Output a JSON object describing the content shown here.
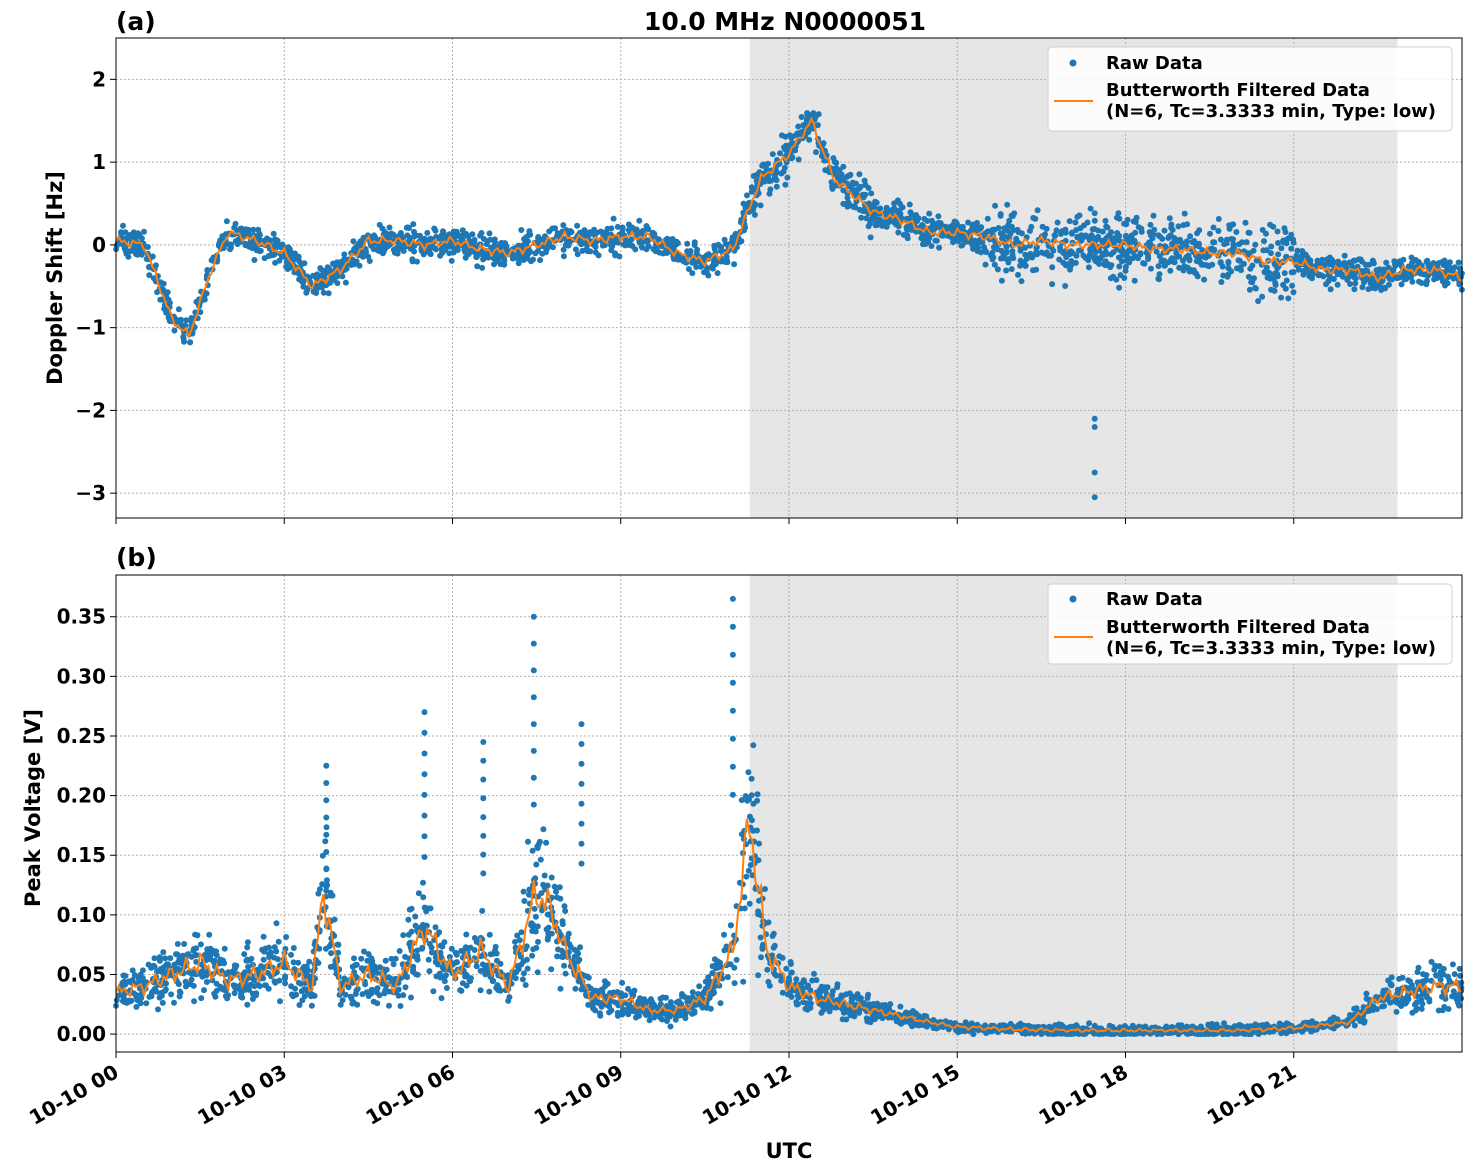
{
  "chart_data": [
    {
      "type": "scatter+line",
      "panel_label": "(a)",
      "title": "10.0 MHz N0000051",
      "ylabel": "Doppler Shift [Hz]",
      "ylim": [
        -3.3,
        2.5
      ],
      "yticks": [
        2,
        1,
        0,
        -1,
        -2,
        -3
      ],
      "ytick_labels": [
        "2",
        "1",
        "0",
        "−1",
        "−2",
        "−3"
      ],
      "grid": true,
      "legend_position": "top-right",
      "shaded_interval_hours": [
        11.3,
        22.85
      ],
      "series": [
        {
          "name": "Raw Data",
          "kind": "scatter",
          "color": "#1f77b4",
          "x_hours": [
            0,
            0.5,
            1.0,
            1.3,
            1.7,
            2.0,
            2.5,
            3.0,
            3.5,
            4.0,
            4.5,
            5.0,
            5.5,
            6.0,
            6.5,
            7.0,
            7.5,
            8.0,
            8.5,
            9.0,
            9.5,
            10.0,
            10.5,
            11.0,
            11.5,
            12.0,
            12.4,
            12.8,
            13.5,
            14.0,
            14.5,
            15.0,
            15.5,
            16.0,
            16.5,
            17.0,
            17.5,
            18.0,
            18.5,
            19.0,
            19.5,
            20.0,
            20.5,
            21.0,
            21.5,
            22.0,
            22.5,
            23.0,
            23.5,
            24.0
          ],
          "y": [
            0.05,
            0.0,
            -0.9,
            -1.1,
            -0.3,
            0.15,
            0.05,
            -0.1,
            -0.5,
            -0.3,
            0.05,
            0.05,
            0.0,
            0.05,
            -0.05,
            -0.1,
            0.0,
            0.1,
            0.05,
            0.1,
            0.1,
            -0.1,
            -0.2,
            -0.05,
            0.8,
            1.1,
            1.5,
            0.8,
            0.4,
            0.3,
            0.15,
            0.15,
            0.1,
            0.0,
            0.05,
            0.0,
            0.0,
            0.0,
            -0.05,
            -0.05,
            -0.1,
            -0.1,
            -0.2,
            -0.2,
            -0.3,
            -0.3,
            -0.4,
            -0.3,
            -0.3,
            -0.4
          ],
          "outliers": [
            [
              17.45,
              -2.1
            ],
            [
              17.45,
              -2.2
            ],
            [
              17.45,
              -2.75
            ],
            [
              17.45,
              -3.05
            ]
          ]
        },
        {
          "name": "Butterworth Filtered Data\n(N=6, Tc=3.3333 min, Type: low)",
          "kind": "line",
          "color": "#ff7f0e",
          "x_hours": [
            0,
            0.5,
            1.0,
            1.3,
            1.7,
            2.0,
            2.5,
            3.0,
            3.5,
            4.0,
            4.5,
            5.0,
            5.5,
            6.0,
            6.5,
            7.0,
            7.5,
            8.0,
            8.5,
            9.0,
            9.5,
            10.0,
            10.5,
            11.0,
            11.5,
            12.0,
            12.4,
            12.8,
            13.5,
            14.0,
            14.5,
            15.0,
            15.5,
            16.0,
            16.5,
            17.0,
            17.5,
            18.0,
            18.5,
            19.0,
            19.5,
            20.0,
            20.5,
            21.0,
            21.5,
            22.0,
            22.5,
            23.0,
            23.5,
            24.0
          ],
          "y": [
            0.05,
            0.0,
            -0.9,
            -1.1,
            -0.3,
            0.15,
            0.05,
            -0.1,
            -0.5,
            -0.3,
            0.05,
            0.05,
            0.0,
            0.05,
            -0.05,
            -0.1,
            0.0,
            0.1,
            0.05,
            0.1,
            0.1,
            -0.1,
            -0.2,
            -0.05,
            0.8,
            1.1,
            1.5,
            0.8,
            0.4,
            0.3,
            0.15,
            0.15,
            0.1,
            0.0,
            0.05,
            0.0,
            0.0,
            0.0,
            -0.05,
            -0.05,
            -0.1,
            -0.1,
            -0.2,
            -0.2,
            -0.3,
            -0.3,
            -0.4,
            -0.3,
            -0.3,
            -0.4
          ]
        }
      ]
    },
    {
      "type": "scatter+line",
      "panel_label": "(b)",
      "ylabel": "Peak Voltage [V]",
      "xlabel": "UTC",
      "ylim": [
        -0.015,
        0.385
      ],
      "yticks": [
        0.35,
        0.3,
        0.25,
        0.2,
        0.15,
        0.1,
        0.05,
        0.0
      ],
      "ytick_labels": [
        "0.35",
        "0.30",
        "0.25",
        "0.20",
        "0.15",
        "0.10",
        "0.05",
        "0.00"
      ],
      "x_range_hours": [
        0,
        24
      ],
      "xticks_hours": [
        0,
        3,
        6,
        9,
        12,
        15,
        18,
        21
      ],
      "xtick_labels": [
        "10-10 00",
        "10-10 03",
        "10-10 06",
        "10-10 09",
        "10-10 12",
        "10-10 15",
        "10-10 18",
        "10-10 21"
      ],
      "grid": true,
      "legend_position": "top-right",
      "shaded_interval_hours": [
        11.3,
        22.85
      ],
      "series": [
        {
          "name": "Raw Data",
          "kind": "scatter",
          "color": "#1f77b4",
          "x_hours": [
            0,
            0.5,
            1.0,
            1.5,
            2.0,
            2.5,
            3.0,
            3.5,
            3.7,
            4.0,
            4.5,
            5.0,
            5.5,
            6.0,
            6.5,
            7.0,
            7.5,
            7.8,
            8.0,
            8.5,
            9.0,
            9.5,
            10.0,
            10.5,
            11.0,
            11.3,
            11.6,
            12.0,
            12.5,
            13.0,
            13.5,
            14.0,
            14.5,
            15.0,
            16.0,
            17.0,
            18.0,
            19.0,
            20.0,
            21.0,
            22.0,
            22.5,
            23.0,
            23.5,
            24.0
          ],
          "y": [
            0.035,
            0.04,
            0.05,
            0.06,
            0.045,
            0.05,
            0.06,
            0.04,
            0.12,
            0.04,
            0.05,
            0.04,
            0.09,
            0.05,
            0.07,
            0.04,
            0.12,
            0.1,
            0.07,
            0.03,
            0.03,
            0.02,
            0.02,
            0.03,
            0.07,
            0.18,
            0.07,
            0.04,
            0.03,
            0.025,
            0.02,
            0.015,
            0.01,
            0.006,
            0.004,
            0.003,
            0.003,
            0.003,
            0.003,
            0.005,
            0.01,
            0.03,
            0.035,
            0.04,
            0.04
          ],
          "peaks": [
            [
              7.45,
              0.35
            ],
            [
              11.0,
              0.365
            ],
            [
              5.5,
              0.27
            ],
            [
              3.75,
              0.225
            ],
            [
              6.55,
              0.245
            ],
            [
              8.3,
              0.26
            ]
          ]
        },
        {
          "name": "Butterworth Filtered Data\n(N=6, Tc=3.3333 min, Type: low)",
          "kind": "line",
          "color": "#ff7f0e",
          "x_hours": [
            0,
            0.5,
            1.0,
            1.5,
            2.0,
            2.5,
            3.0,
            3.5,
            3.7,
            4.0,
            4.5,
            5.0,
            5.5,
            6.0,
            6.5,
            7.0,
            7.5,
            7.8,
            8.0,
            8.5,
            9.0,
            9.5,
            10.0,
            10.5,
            11.0,
            11.3,
            11.6,
            12.0,
            12.5,
            13.0,
            13.5,
            14.0,
            14.5,
            15.0,
            16.0,
            17.0,
            18.0,
            19.0,
            20.0,
            21.0,
            22.0,
            22.5,
            23.0,
            23.5,
            24.0
          ],
          "y": [
            0.035,
            0.04,
            0.05,
            0.06,
            0.045,
            0.05,
            0.06,
            0.04,
            0.12,
            0.04,
            0.05,
            0.04,
            0.09,
            0.05,
            0.07,
            0.04,
            0.12,
            0.1,
            0.07,
            0.03,
            0.03,
            0.02,
            0.02,
            0.03,
            0.07,
            0.18,
            0.07,
            0.04,
            0.03,
            0.025,
            0.02,
            0.015,
            0.01,
            0.006,
            0.004,
            0.003,
            0.003,
            0.003,
            0.003,
            0.005,
            0.01,
            0.03,
            0.035,
            0.04,
            0.04
          ]
        }
      ]
    }
  ],
  "colors": {
    "raw": "#1f77b4",
    "filtered": "#ff7f0e",
    "shade": "#e6e6e6",
    "grid": "#b0b0b0"
  }
}
